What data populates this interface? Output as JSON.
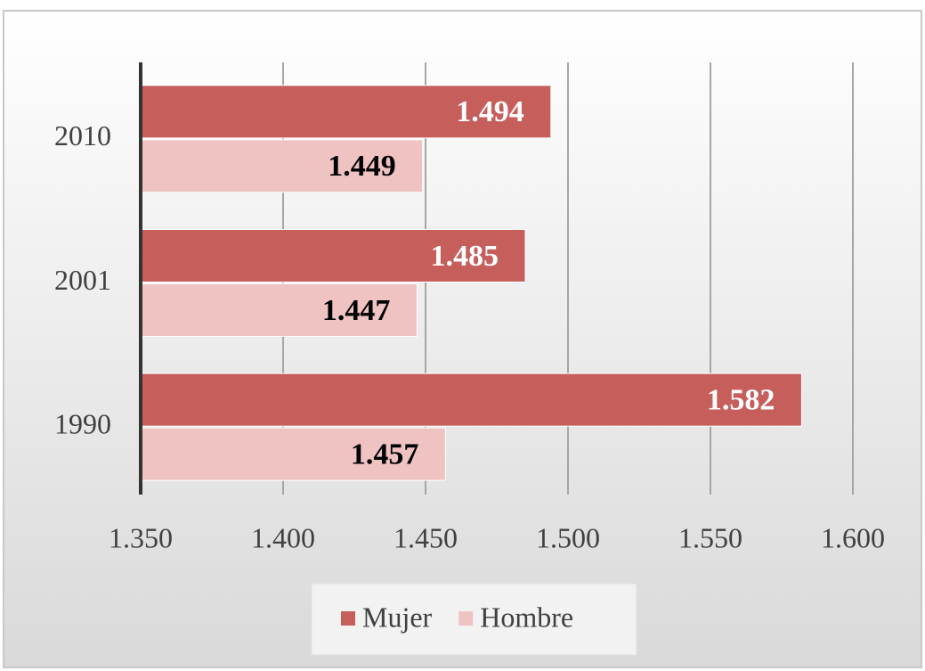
{
  "chart_data": {
    "type": "barh",
    "categories": [
      "2010",
      "2001",
      "1990"
    ],
    "series": [
      {
        "name": "Mujer",
        "color": "#c65e5c",
        "values": [
          1.494,
          1.485,
          1.582
        ]
      },
      {
        "name": "Hombre",
        "color": "#f0c3c3",
        "values": [
          1.449,
          1.447,
          1.457
        ]
      }
    ],
    "xlim": [
      1.35,
      1.6
    ],
    "xticks": [
      {
        "value": 1.35,
        "label": "1.350"
      },
      {
        "value": 1.4,
        "label": "1.400"
      },
      {
        "value": 1.45,
        "label": "1.450"
      },
      {
        "value": 1.5,
        "label": "1.500"
      },
      {
        "value": 1.55,
        "label": "1.550"
      },
      {
        "value": 1.6,
        "label": "1.600"
      }
    ],
    "grid": true,
    "legend": "bottom"
  }
}
